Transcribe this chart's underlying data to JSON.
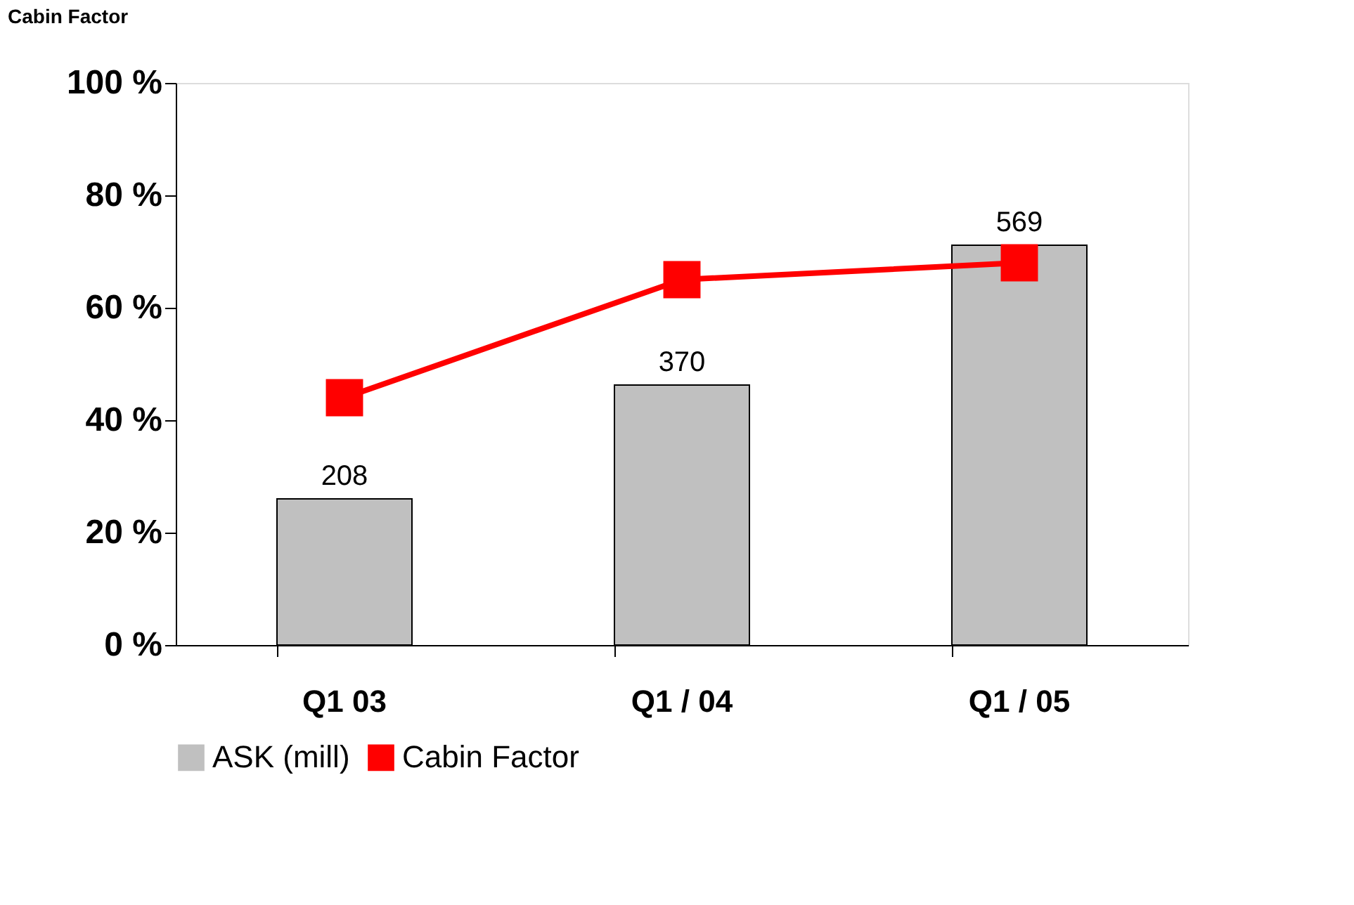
{
  "chart_data": {
    "type": "bar",
    "ylabel": "Cabin Factor",
    "categories": [
      "Q1 03",
      "Q1 / 04",
      "Q1  / 05"
    ],
    "series": [
      {
        "name": "ASK (mill)",
        "axis": "y2",
        "color": "#c0c0c0",
        "values": [
          208,
          370,
          569
        ],
        "value_labels": [
          "208",
          "370",
          "569"
        ]
      },
      {
        "name": "Cabin Factor",
        "type": "line",
        "color": "#ff0000",
        "values": [
          44,
          65,
          68
        ],
        "marker": "square"
      }
    ],
    "ylim": [
      0,
      100
    ],
    "yticks": [
      {
        "value": 0,
        "label": "0 %"
      },
      {
        "value": 20,
        "label": "20 %"
      },
      {
        "value": 40,
        "label": "40 %"
      },
      {
        "value": 60,
        "label": "60 %"
      },
      {
        "value": 80,
        "label": "80 %"
      },
      {
        "value": 100,
        "label": "100 %"
      }
    ],
    "y2lim": [
      0,
      800
    ],
    "grid": false,
    "legend": "bottom"
  }
}
